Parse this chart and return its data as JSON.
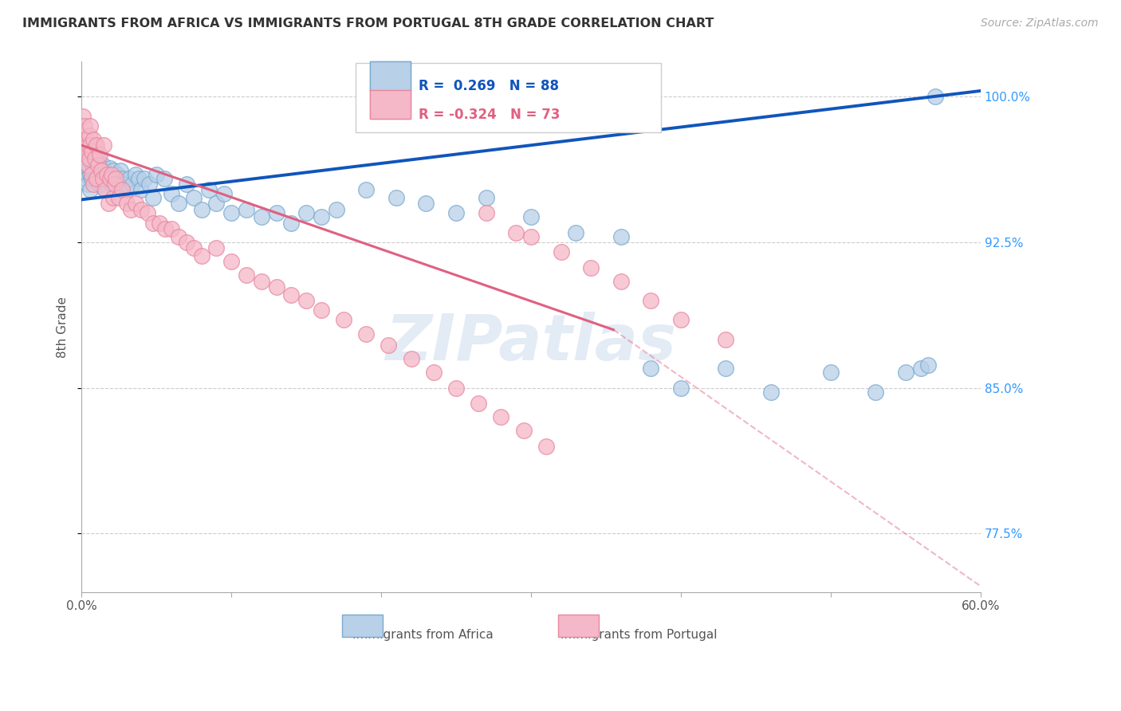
{
  "title": "IMMIGRANTS FROM AFRICA VS IMMIGRANTS FROM PORTUGAL 8TH GRADE CORRELATION CHART",
  "source": "Source: ZipAtlas.com",
  "ylabel": "8th Grade",
  "xlim": [
    0.0,
    0.6
  ],
  "ylim": [
    0.745,
    1.018
  ],
  "yticks": [
    0.775,
    0.85,
    0.925,
    1.0
  ],
  "ytick_labels": [
    "77.5%",
    "85.0%",
    "92.5%",
    "100.0%"
  ],
  "xticks": [
    0.0,
    0.1,
    0.2,
    0.3,
    0.4,
    0.5,
    0.6
  ],
  "xtick_labels": [
    "0.0%",
    "",
    "",
    "",
    "",
    "",
    "60.0%"
  ],
  "africa_color": "#b8d0e8",
  "africa_edge": "#7aaad0",
  "portugal_color": "#f5b8c8",
  "portugal_edge": "#e888a0",
  "trend_africa_color": "#1055bb",
  "trend_portugal_color": "#e06080",
  "background_color": "#ffffff",
  "grid_color": "#cccccc",
  "title_color": "#333333",
  "axis_label_color": "#555555",
  "ytick_label_color": "#3399ff",
  "watermark_color": "#c8d8ec",
  "R_africa": "0.269",
  "N_africa": "88",
  "R_portugal": "-0.324",
  "N_portugal": "73",
  "legend_africa_label": "Immigrants from Africa",
  "legend_portugal_label": "Immigrants from Portugal",
  "africa_scatter_x": [
    0.001,
    0.002,
    0.002,
    0.003,
    0.003,
    0.004,
    0.004,
    0.005,
    0.005,
    0.006,
    0.006,
    0.006,
    0.007,
    0.007,
    0.008,
    0.008,
    0.009,
    0.009,
    0.01,
    0.01,
    0.01,
    0.011,
    0.011,
    0.012,
    0.012,
    0.013,
    0.013,
    0.014,
    0.015,
    0.015,
    0.016,
    0.017,
    0.018,
    0.019,
    0.02,
    0.021,
    0.022,
    0.023,
    0.024,
    0.025,
    0.026,
    0.027,
    0.028,
    0.03,
    0.032,
    0.034,
    0.036,
    0.038,
    0.04,
    0.042,
    0.045,
    0.048,
    0.05,
    0.055,
    0.06,
    0.065,
    0.07,
    0.075,
    0.08,
    0.085,
    0.09,
    0.095,
    0.1,
    0.11,
    0.12,
    0.13,
    0.14,
    0.15,
    0.16,
    0.17,
    0.19,
    0.21,
    0.23,
    0.25,
    0.27,
    0.3,
    0.33,
    0.36,
    0.38,
    0.4,
    0.43,
    0.46,
    0.5,
    0.53,
    0.55,
    0.56,
    0.565,
    0.57
  ],
  "africa_scatter_y": [
    0.965,
    0.96,
    0.97,
    0.972,
    0.958,
    0.968,
    0.955,
    0.963,
    0.975,
    0.96,
    0.952,
    0.97,
    0.966,
    0.958,
    0.962,
    0.97,
    0.958,
    0.975,
    0.965,
    0.958,
    0.972,
    0.962,
    0.968,
    0.955,
    0.965,
    0.96,
    0.958,
    0.965,
    0.953,
    0.962,
    0.958,
    0.96,
    0.958,
    0.963,
    0.955,
    0.962,
    0.958,
    0.955,
    0.96,
    0.958,
    0.962,
    0.958,
    0.955,
    0.952,
    0.958,
    0.955,
    0.96,
    0.958,
    0.952,
    0.958,
    0.955,
    0.948,
    0.96,
    0.958,
    0.95,
    0.945,
    0.955,
    0.948,
    0.942,
    0.952,
    0.945,
    0.95,
    0.94,
    0.942,
    0.938,
    0.94,
    0.935,
    0.94,
    0.938,
    0.942,
    0.952,
    0.948,
    0.945,
    0.94,
    0.948,
    0.938,
    0.93,
    0.928,
    0.86,
    0.85,
    0.86,
    0.848,
    0.858,
    0.848,
    0.858,
    0.86,
    0.862,
    1.0
  ],
  "portugal_scatter_x": [
    0.001,
    0.002,
    0.002,
    0.003,
    0.003,
    0.004,
    0.004,
    0.005,
    0.005,
    0.006,
    0.006,
    0.007,
    0.007,
    0.008,
    0.008,
    0.009,
    0.01,
    0.01,
    0.011,
    0.012,
    0.013,
    0.014,
    0.015,
    0.016,
    0.017,
    0.018,
    0.019,
    0.02,
    0.021,
    0.022,
    0.023,
    0.025,
    0.027,
    0.03,
    0.033,
    0.036,
    0.04,
    0.044,
    0.048,
    0.052,
    0.056,
    0.06,
    0.065,
    0.07,
    0.075,
    0.08,
    0.09,
    0.1,
    0.11,
    0.12,
    0.13,
    0.14,
    0.15,
    0.16,
    0.175,
    0.19,
    0.205,
    0.22,
    0.235,
    0.25,
    0.265,
    0.28,
    0.295,
    0.31,
    0.27,
    0.29,
    0.3,
    0.32,
    0.34,
    0.36,
    0.38,
    0.4,
    0.43
  ],
  "portugal_scatter_y": [
    0.99,
    0.975,
    0.985,
    0.97,
    0.978,
    0.965,
    0.975,
    0.98,
    0.968,
    0.975,
    0.985,
    0.96,
    0.972,
    0.978,
    0.955,
    0.968,
    0.975,
    0.958,
    0.965,
    0.97,
    0.962,
    0.958,
    0.975,
    0.952,
    0.96,
    0.945,
    0.958,
    0.96,
    0.948,
    0.955,
    0.958,
    0.948,
    0.952,
    0.945,
    0.942,
    0.945,
    0.942,
    0.94,
    0.935,
    0.935,
    0.932,
    0.932,
    0.928,
    0.925,
    0.922,
    0.918,
    0.922,
    0.915,
    0.908,
    0.905,
    0.902,
    0.898,
    0.895,
    0.89,
    0.885,
    0.878,
    0.872,
    0.865,
    0.858,
    0.85,
    0.842,
    0.835,
    0.828,
    0.82,
    0.94,
    0.93,
    0.928,
    0.92,
    0.912,
    0.905,
    0.895,
    0.885,
    0.875
  ],
  "trend_africa_x0": 0.0,
  "trend_africa_y0": 0.947,
  "trend_africa_x1": 0.6,
  "trend_africa_y1": 1.003,
  "trend_portugal_solid_x0": 0.0,
  "trend_portugal_solid_y0": 0.975,
  "trend_portugal_solid_x1": 0.355,
  "trend_portugal_solid_y1": 0.88,
  "trend_portugal_dash_x0": 0.355,
  "trend_portugal_dash_y0": 0.88,
  "trend_portugal_dash_x1": 0.6,
  "trend_portugal_dash_y1": 0.748
}
